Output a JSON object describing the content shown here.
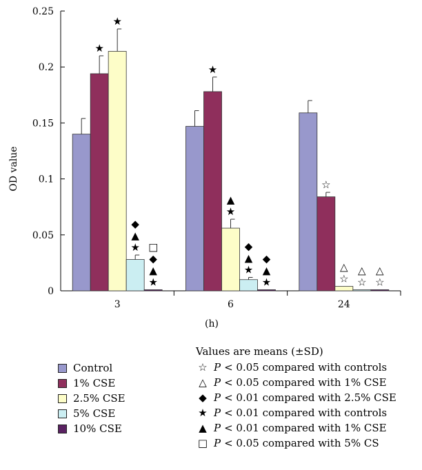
{
  "chart_data": {
    "type": "bar",
    "ylabel": "OD value",
    "xlabel": "(h)",
    "ylim": [
      0,
      0.25
    ],
    "y_ticks": [
      "0",
      "0.05",
      "0.1",
      "0.15",
      "0.2",
      "0.25"
    ],
    "categories": [
      "3",
      "6",
      "24"
    ],
    "series": [
      {
        "name": "Control",
        "color": "#9898cc",
        "values": [
          0.14,
          0.147,
          0.159
        ],
        "errors": [
          0.014,
          0.014,
          0.011
        ]
      },
      {
        "name": "1% CSE",
        "color": "#8f2f5c",
        "values": [
          0.194,
          0.178,
          0.084
        ],
        "errors": [
          0.016,
          0.013,
          0.004
        ]
      },
      {
        "name": "2.5% CSE",
        "color": "#fdfdc8",
        "values": [
          0.214,
          0.056,
          0.004
        ],
        "errors": [
          0.02,
          0.008,
          0.0
        ]
      },
      {
        "name": "5% CSE",
        "color": "#cbeef2",
        "values": [
          0.028,
          0.01,
          0.001
        ],
        "errors": [
          0.004,
          0.002,
          0.0
        ]
      },
      {
        "name": "10% CSE",
        "color": "#5a2262",
        "values": [
          0.001,
          0.001,
          0.001
        ],
        "errors": [
          0.0,
          0.0,
          0.0
        ]
      }
    ],
    "significance_marks": [
      [
        "",
        "★",
        "★",
        "◆\n▲\n★",
        "□\n◆\n▲\n★"
      ],
      [
        "",
        "★",
        "▲\n★",
        "◆\n▲\n★",
        "◆\n▲\n★"
      ],
      [
        "",
        "☆",
        "△\n☆",
        "△\n☆",
        "△\n☆"
      ]
    ]
  },
  "legend": {
    "note": "Values are means (±SD)",
    "items": [
      {
        "symbol": "☆",
        "p": "P",
        "text": "< 0.05 compared with controls"
      },
      {
        "symbol": "△",
        "p": "P",
        "text": "< 0.05 compared with 1% CSE"
      },
      {
        "symbol": "◆",
        "p": "P",
        "text": "< 0.01 compared with 2.5% CSE"
      },
      {
        "symbol": "★",
        "p": "P",
        "text": "< 0.01 compared with controls"
      },
      {
        "symbol": "▲",
        "p": "P",
        "text": "< 0.01 compared with 1% CSE"
      },
      {
        "symbol": "□",
        "p": "P",
        "text": "< 0.05 compared with 5% CS"
      }
    ]
  }
}
